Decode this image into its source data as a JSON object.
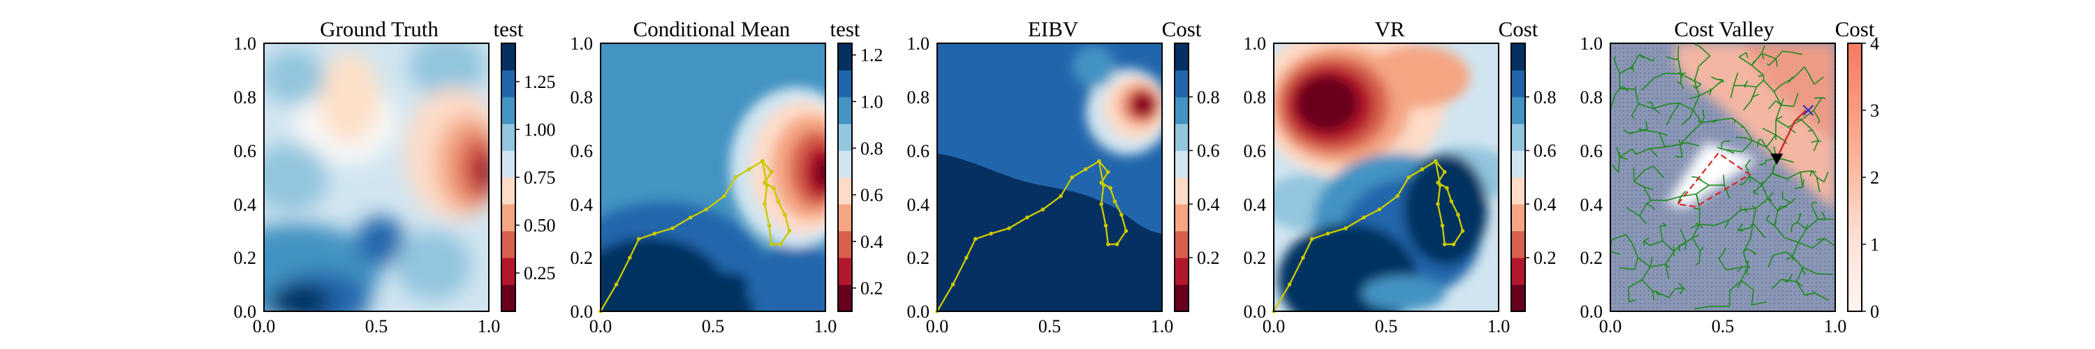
{
  "figure": {
    "panels": [
      {
        "id": "ground-truth",
        "title": "Ground Truth",
        "colorbar_title": "test",
        "cmap": "RdBu",
        "x_ticks": [
          "0.0",
          "0.5",
          "1.0"
        ],
        "y_ticks": [
          "0.0",
          "0.2",
          "0.4",
          "0.6",
          "0.8",
          "1.0"
        ],
        "cbar_ticks": [
          "0.25",
          "0.50",
          "0.75",
          "1.00",
          "1.25"
        ],
        "cbar_values": [
          0.25,
          0.5,
          0.75,
          1.0,
          1.25
        ],
        "cbar_range": [
          0.05,
          1.45
        ]
      },
      {
        "id": "conditional-mean",
        "title": "Conditional Mean",
        "colorbar_title": "test",
        "cmap": "RdBu",
        "x_ticks": [
          "0.0",
          "0.5",
          "1.0"
        ],
        "y_ticks": [
          "0.0",
          "0.2",
          "0.4",
          "0.6",
          "0.8",
          "1.0"
        ],
        "cbar_ticks": [
          "0.2",
          "0.4",
          "0.6",
          "0.8",
          "1.0",
          "1.2"
        ],
        "cbar_values": [
          0.2,
          0.4,
          0.6,
          0.8,
          1.0,
          1.2
        ],
        "cbar_range": [
          0.1,
          1.25
        ]
      },
      {
        "id": "eibv",
        "title": "EIBV",
        "colorbar_title": "Cost",
        "cmap": "RdBu",
        "x_ticks": [
          "0.0",
          "0.5",
          "1.0"
        ],
        "y_ticks": [
          "0.0",
          "0.2",
          "0.4",
          "0.6",
          "0.8",
          "1.0"
        ],
        "cbar_ticks": [
          "0.2",
          "0.4",
          "0.6",
          "0.8"
        ],
        "cbar_values": [
          0.2,
          0.4,
          0.6,
          0.8
        ],
        "cbar_range": [
          0.0,
          1.0
        ]
      },
      {
        "id": "vr",
        "title": "VR",
        "colorbar_title": "Cost",
        "cmap": "RdBu",
        "x_ticks": [
          "0.0",
          "0.5",
          "1.0"
        ],
        "y_ticks": [
          "0.0",
          "0.2",
          "0.4",
          "0.6",
          "0.8",
          "1.0"
        ],
        "cbar_ticks": [
          "0.2",
          "0.4",
          "0.6",
          "0.8"
        ],
        "cbar_values": [
          0.2,
          0.4,
          0.6,
          0.8
        ],
        "cbar_range": [
          0.0,
          1.0
        ]
      },
      {
        "id": "cost-valley",
        "title": "Cost Valley",
        "colorbar_title": "Cost",
        "cmap": "Reds",
        "x_ticks": [
          "0.0",
          "0.5",
          "1.0"
        ],
        "y_ticks": [
          "0.0",
          "0.2",
          "0.4",
          "0.6",
          "0.8",
          "1.0"
        ],
        "cbar_ticks": [
          "0",
          "1",
          "2",
          "3",
          "4"
        ],
        "cbar_values": [
          0,
          1,
          2,
          3,
          4
        ],
        "cbar_range": [
          0,
          4
        ]
      }
    ]
  },
  "colors": {
    "trajectory": "#c8c800",
    "tree": "#1e8a1e",
    "obstacle_outline": "#d62728",
    "best_path": "#d62728",
    "target_marker": "#3030c0",
    "current_marker": "#000000"
  },
  "chart_data": [
    {
      "type": "heatmap",
      "title": "Ground Truth",
      "colorbar_label": "test",
      "xlim": [
        0,
        1
      ],
      "ylim": [
        0,
        1
      ],
      "clim": [
        0.05,
        1.45
      ],
      "description_values": {
        "hotspots_low": [
          {
            "x": 0.88,
            "y": 0.52,
            "value": 0.1
          }
        ],
        "hotspots_high": [
          {
            "x": 0.2,
            "y": 0.08,
            "value": 1.4
          },
          {
            "x": 0.5,
            "y": 0.25,
            "value": 1.25
          }
        ]
      }
    },
    {
      "type": "heatmap",
      "title": "Conditional Mean",
      "colorbar_label": "test",
      "xlim": [
        0,
        1
      ],
      "ylim": [
        0,
        1
      ],
      "clim": [
        0.1,
        1.25
      ],
      "trajectory": [
        [
          0.0,
          0.0
        ],
        [
          0.07,
          0.1
        ],
        [
          0.13,
          0.2
        ],
        [
          0.17,
          0.27
        ],
        [
          0.24,
          0.29
        ],
        [
          0.32,
          0.31
        ],
        [
          0.4,
          0.35
        ],
        [
          0.47,
          0.38
        ],
        [
          0.55,
          0.43
        ],
        [
          0.6,
          0.5
        ],
        [
          0.66,
          0.53
        ],
        [
          0.72,
          0.56
        ],
        [
          0.76,
          0.52
        ],
        [
          0.73,
          0.48
        ],
        [
          0.77,
          0.46
        ],
        [
          0.79,
          0.41
        ],
        [
          0.82,
          0.36
        ],
        [
          0.84,
          0.3
        ],
        [
          0.8,
          0.25
        ],
        [
          0.76,
          0.25
        ],
        [
          0.75,
          0.32
        ],
        [
          0.73,
          0.4
        ],
        [
          0.74,
          0.47
        ],
        [
          0.72,
          0.56
        ]
      ]
    },
    {
      "type": "heatmap",
      "title": "EIBV",
      "colorbar_label": "Cost",
      "xlim": [
        0,
        1
      ],
      "ylim": [
        0,
        1
      ],
      "clim": [
        0,
        1
      ],
      "trajectory": [
        [
          0.0,
          0.0
        ],
        [
          0.07,
          0.1
        ],
        [
          0.13,
          0.2
        ],
        [
          0.17,
          0.27
        ],
        [
          0.24,
          0.29
        ],
        [
          0.32,
          0.31
        ],
        [
          0.4,
          0.35
        ],
        [
          0.47,
          0.38
        ],
        [
          0.55,
          0.43
        ],
        [
          0.6,
          0.5
        ],
        [
          0.66,
          0.53
        ],
        [
          0.72,
          0.56
        ],
        [
          0.76,
          0.52
        ],
        [
          0.73,
          0.48
        ],
        [
          0.77,
          0.46
        ],
        [
          0.79,
          0.41
        ],
        [
          0.82,
          0.36
        ],
        [
          0.84,
          0.3
        ],
        [
          0.8,
          0.25
        ],
        [
          0.76,
          0.25
        ],
        [
          0.75,
          0.32
        ],
        [
          0.73,
          0.4
        ],
        [
          0.74,
          0.47
        ],
        [
          0.72,
          0.56
        ]
      ]
    },
    {
      "type": "heatmap",
      "title": "VR",
      "colorbar_label": "Cost",
      "xlim": [
        0,
        1
      ],
      "ylim": [
        0,
        1
      ],
      "clim": [
        0,
        1
      ],
      "trajectory": [
        [
          0.0,
          0.0
        ],
        [
          0.07,
          0.1
        ],
        [
          0.13,
          0.2
        ],
        [
          0.17,
          0.27
        ],
        [
          0.24,
          0.29
        ],
        [
          0.32,
          0.31
        ],
        [
          0.4,
          0.35
        ],
        [
          0.47,
          0.38
        ],
        [
          0.55,
          0.43
        ],
        [
          0.6,
          0.5
        ],
        [
          0.66,
          0.53
        ],
        [
          0.72,
          0.56
        ],
        [
          0.76,
          0.52
        ],
        [
          0.73,
          0.48
        ],
        [
          0.77,
          0.46
        ],
        [
          0.79,
          0.41
        ],
        [
          0.82,
          0.36
        ],
        [
          0.84,
          0.3
        ],
        [
          0.8,
          0.25
        ],
        [
          0.76,
          0.25
        ],
        [
          0.75,
          0.32
        ],
        [
          0.73,
          0.4
        ],
        [
          0.74,
          0.47
        ],
        [
          0.72,
          0.56
        ]
      ]
    },
    {
      "type": "heatmap",
      "title": "Cost Valley",
      "colorbar_label": "Cost",
      "xlim": [
        0,
        1
      ],
      "ylim": [
        0,
        1
      ],
      "clim": [
        0,
        4
      ],
      "tree_root": [
        0.74,
        0.57
      ],
      "obstacle_polygon": [
        [
          0.3,
          0.4
        ],
        [
          0.48,
          0.59
        ],
        [
          0.62,
          0.51
        ],
        [
          0.38,
          0.39
        ]
      ],
      "best_path": [
        [
          0.74,
          0.57
        ],
        [
          0.82,
          0.71
        ],
        [
          0.87,
          0.75
        ]
      ],
      "target": [
        0.88,
        0.75
      ],
      "current_position": [
        0.74,
        0.57
      ]
    }
  ]
}
